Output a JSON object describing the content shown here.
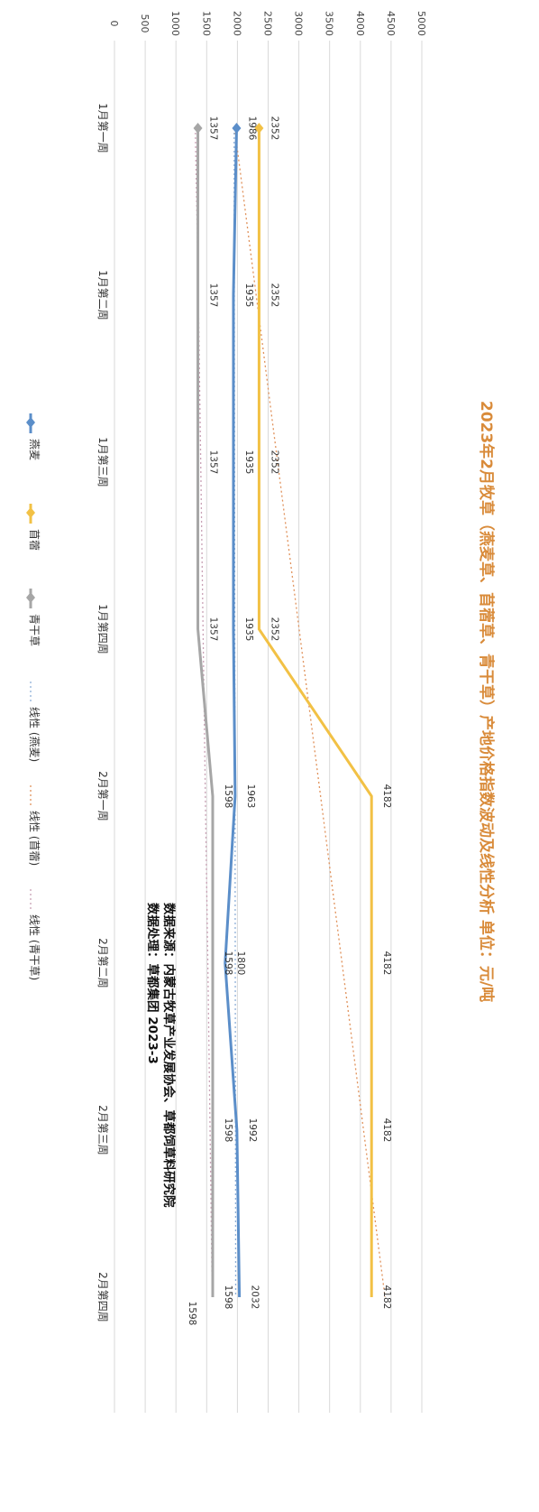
{
  "chart_data": {
    "type": "line",
    "title": "2023年2月牧草（燕麦草、苜蓿草、青干草）产地价格指数波动及线性分析 单位：元/吨",
    "categories": [
      "1月第一周",
      "1月第二周",
      "1月第三周",
      "1月第四周",
      "2月第一周",
      "2月第二周",
      "2月第三周",
      "2月第四周"
    ],
    "ylim": [
      0,
      5000
    ],
    "yticks": [
      0,
      500,
      1000,
      1500,
      2000,
      2500,
      3000,
      3500,
      4000,
      4500,
      5000
    ],
    "grid": true,
    "legend_position": "bottom",
    "series": [
      {
        "name": "燕麦",
        "values": [
          1986,
          1935,
          1935,
          1935,
          1963,
          1800,
          1992,
          2032
        ],
        "color": "#5b8ec9",
        "marker": "diamond"
      },
      {
        "name": "苜蓿",
        "values": [
          2352,
          2352,
          2352,
          2352,
          4182,
          4182,
          4182,
          4182
        ],
        "color": "#f2c145",
        "marker": "diamond"
      },
      {
        "name": "青干草",
        "values": [
          1357,
          1357,
          1357,
          1357,
          1598,
          1598,
          1598,
          1598
        ],
        "color": "#a6a6a6",
        "marker": "diamond"
      }
    ],
    "trendlines": [
      {
        "name": "线性 (燕麦)",
        "color": "#8fb0d8",
        "values": [
          1946,
          1950,
          1954,
          1957,
          1961,
          1965,
          1969,
          1972
        ]
      },
      {
        "name": "线性 (苜蓿)",
        "color": "#e0915a",
        "values": [
          1955,
          2305,
          2654,
          3004,
          3353,
          3702,
          4052,
          4401
        ]
      },
      {
        "name": "线性 (青干草)",
        "color": "#c8a0b4",
        "values": [
          1315,
          1364,
          1403,
          1441,
          1478,
          1519,
          1555,
          1590
        ]
      }
    ],
    "extra_label": "1598",
    "source_lines": [
      "数据来源：内蒙古牧草产业发展协会、草都饲草料研究院",
      "数据处理：草都集团 2023-3"
    ]
  }
}
